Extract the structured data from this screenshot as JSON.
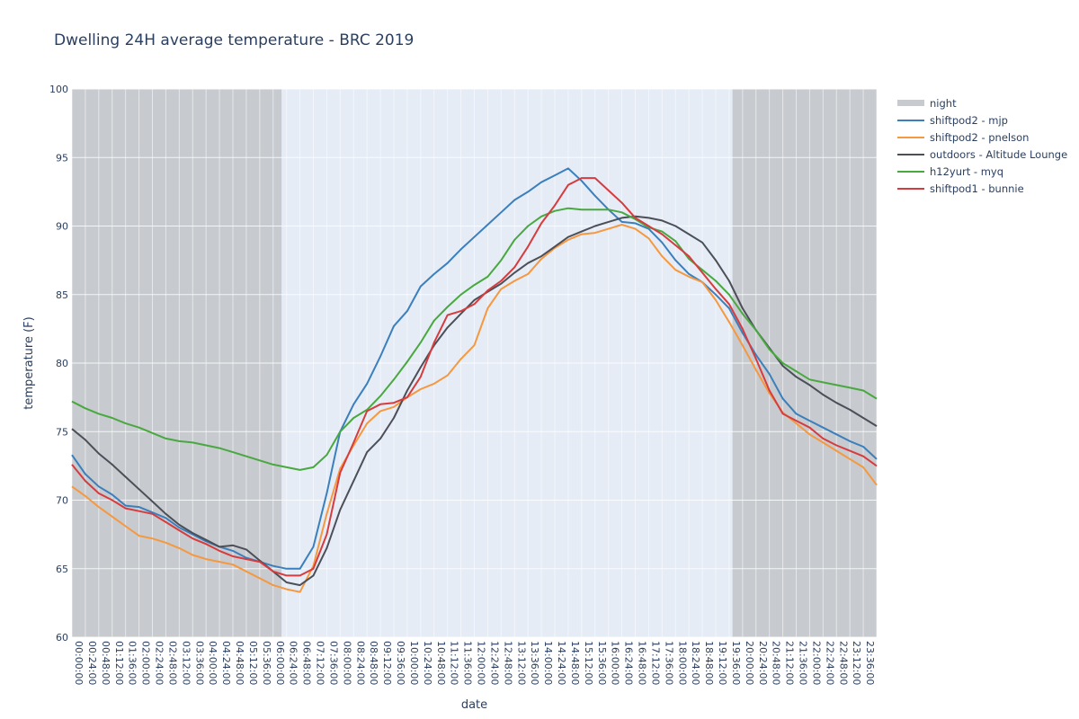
{
  "chart_data": {
    "type": "line",
    "title": "Dwelling 24H average temperature - BRC 2019",
    "xlabel": "date",
    "ylabel": "temperature (F)",
    "ylim": [
      60,
      100
    ],
    "yticks": [
      60,
      65,
      70,
      75,
      80,
      85,
      90,
      95,
      100
    ],
    "x_range_minutes": [
      0,
      1440
    ],
    "x_tick_step_minutes": 24,
    "x_tick_labels": [
      "00:00:00",
      "00:24:00",
      "00:48:00",
      "01:12:00",
      "01:36:00",
      "02:00:00",
      "02:24:00",
      "02:48:00",
      "03:12:00",
      "03:36:00",
      "04:00:00",
      "04:24:00",
      "04:48:00",
      "05:12:00",
      "05:36:00",
      "06:00:00",
      "06:24:00",
      "06:48:00",
      "07:12:00",
      "07:36:00",
      "08:00:00",
      "08:24:00",
      "08:48:00",
      "09:12:00",
      "09:36:00",
      "10:00:00",
      "10:24:00",
      "10:48:00",
      "11:12:00",
      "11:36:00",
      "12:00:00",
      "12:24:00",
      "12:48:00",
      "13:12:00",
      "13:36:00",
      "14:00:00",
      "14:24:00",
      "14:48:00",
      "15:12:00",
      "15:36:00",
      "16:00:00",
      "16:24:00",
      "16:48:00",
      "17:12:00",
      "17:36:00",
      "18:00:00",
      "18:24:00",
      "18:48:00",
      "19:12:00",
      "19:36:00",
      "20:00:00",
      "20:24:00",
      "20:48:00",
      "21:12:00",
      "21:36:00",
      "22:00:00",
      "22:24:00",
      "22:48:00",
      "23:12:00",
      "23:36:00"
    ],
    "grid": true,
    "legend_position": "top-right",
    "night": {
      "name": "night",
      "color": "#c7cacf",
      "ranges": [
        [
          "00:00:00",
          "06:15:00"
        ],
        [
          "19:42:00",
          "24:00:00"
        ]
      ]
    },
    "x": [
      "00:00",
      "00:24",
      "00:48",
      "01:12",
      "01:36",
      "02:00",
      "02:24",
      "02:48",
      "03:12",
      "03:36",
      "04:00",
      "04:24",
      "04:48",
      "05:12",
      "05:36",
      "06:00",
      "06:24",
      "06:48",
      "07:12",
      "07:36",
      "08:00",
      "08:24",
      "08:48",
      "09:12",
      "09:36",
      "10:00",
      "10:24",
      "10:48",
      "11:12",
      "11:36",
      "12:00",
      "12:24",
      "12:48",
      "13:12",
      "13:36",
      "14:00",
      "14:24",
      "14:48",
      "15:12",
      "15:36",
      "16:00",
      "16:24",
      "16:48",
      "17:12",
      "17:36",
      "18:00",
      "18:24",
      "18:48",
      "19:12",
      "19:36",
      "20:00",
      "20:24",
      "20:48",
      "21:12",
      "21:36",
      "22:00",
      "22:24",
      "22:48",
      "23:12",
      "23:36",
      "24:00"
    ],
    "series": [
      {
        "name": "shiftpod2 - mjp",
        "color": "#3b7fbc",
        "values": [
          73.3,
          71.9,
          71.0,
          70.4,
          69.6,
          69.5,
          69.1,
          68.7,
          68.0,
          67.5,
          67.0,
          66.6,
          66.3,
          65.8,
          65.5,
          65.2,
          65.0,
          65.0,
          66.6,
          70.5,
          75.0,
          77.0,
          78.5,
          80.5,
          82.7,
          83.8,
          85.6,
          86.5,
          87.3,
          88.3,
          89.2,
          90.1,
          91.0,
          91.9,
          92.5,
          93.2,
          93.7,
          94.2,
          93.3,
          92.2,
          91.2,
          90.3,
          90.2,
          89.8,
          88.8,
          87.5,
          86.5,
          85.9,
          85.0,
          84.0,
          82.2,
          80.6,
          79.2,
          77.4,
          76.3,
          75.8,
          75.3,
          74.8,
          74.3,
          73.9,
          73.0
        ]
      },
      {
        "name": "shiftpod2 - pnelson",
        "color": "#f5983f",
        "values": [
          71.0,
          70.3,
          69.5,
          68.8,
          68.1,
          67.4,
          67.2,
          66.9,
          66.5,
          66.0,
          65.7,
          65.5,
          65.3,
          64.8,
          64.3,
          63.8,
          63.5,
          63.3,
          65.2,
          69.0,
          72.3,
          74.0,
          75.6,
          76.5,
          76.8,
          77.5,
          78.1,
          78.5,
          79.1,
          80.3,
          81.3,
          84.0,
          85.4,
          86.0,
          86.5,
          87.6,
          88.4,
          89.0,
          89.4,
          89.5,
          89.8,
          90.1,
          89.8,
          89.1,
          87.8,
          86.8,
          86.3,
          85.9,
          84.6,
          83.0,
          81.3,
          79.5,
          77.8,
          76.4,
          75.6,
          74.8,
          74.2,
          73.6,
          73.0,
          72.4,
          71.1
        ]
      },
      {
        "name": "outdoors - Altitude Lounge",
        "color": "#4c4f57",
        "values": [
          75.2,
          74.4,
          73.4,
          72.6,
          71.7,
          70.8,
          69.9,
          69.0,
          68.2,
          67.6,
          67.1,
          66.6,
          66.7,
          66.4,
          65.6,
          64.8,
          64.0,
          63.8,
          64.5,
          66.5,
          69.3,
          71.4,
          73.5,
          74.5,
          76.0,
          78.0,
          79.7,
          81.3,
          82.6,
          83.6,
          84.6,
          85.2,
          85.8,
          86.6,
          87.3,
          87.8,
          88.5,
          89.2,
          89.6,
          90.0,
          90.3,
          90.6,
          90.7,
          90.6,
          90.4,
          90.0,
          89.4,
          88.8,
          87.5,
          86.0,
          84.0,
          82.4,
          81.1,
          79.8,
          79.0,
          78.4,
          77.7,
          77.1,
          76.6,
          76.0,
          75.4
        ]
      },
      {
        "name": "h12yurt - myq",
        "color": "#49a83f",
        "values": [
          77.2,
          76.7,
          76.3,
          76.0,
          75.6,
          75.3,
          74.9,
          74.5,
          74.3,
          74.2,
          74.0,
          73.8,
          73.5,
          73.2,
          72.9,
          72.6,
          72.4,
          72.2,
          72.4,
          73.3,
          75.0,
          76.0,
          76.6,
          77.6,
          78.8,
          80.1,
          81.5,
          83.1,
          84.1,
          85.0,
          85.7,
          86.3,
          87.5,
          89.0,
          90.0,
          90.7,
          91.1,
          91.3,
          91.2,
          91.2,
          91.2,
          91.0,
          90.5,
          89.9,
          89.6,
          88.9,
          87.6,
          86.8,
          86.0,
          85.0,
          83.6,
          82.4,
          81.0,
          80.0,
          79.4,
          78.8,
          78.6,
          78.4,
          78.2,
          78.0,
          77.4
        ]
      },
      {
        "name": "shiftpod1 - bunnie",
        "color": "#d63c3e",
        "values": [
          72.6,
          71.4,
          70.5,
          70.0,
          69.4,
          69.2,
          69.0,
          68.4,
          67.8,
          67.2,
          66.8,
          66.3,
          65.9,
          65.7,
          65.5,
          64.8,
          64.5,
          64.5,
          65.0,
          67.5,
          72.0,
          74.2,
          76.5,
          77.0,
          77.1,
          77.5,
          79.0,
          81.5,
          83.5,
          83.8,
          84.3,
          85.3,
          86.0,
          87.0,
          88.5,
          90.2,
          91.5,
          93.0,
          93.5,
          93.5,
          92.6,
          91.7,
          90.6,
          90.0,
          89.4,
          88.6,
          87.8,
          86.6,
          85.4,
          84.3,
          82.5,
          80.3,
          78.0,
          76.3,
          75.8,
          75.3,
          74.5,
          74.0,
          73.6,
          73.2,
          72.5
        ]
      }
    ]
  }
}
